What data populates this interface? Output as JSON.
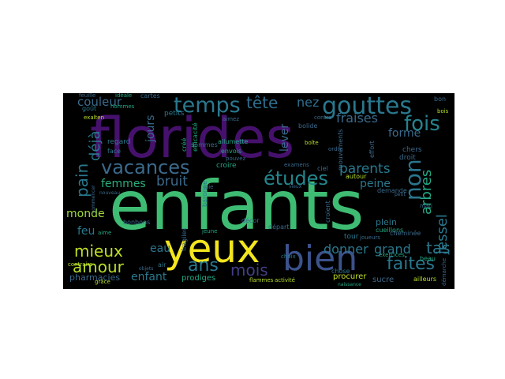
{
  "wordcloud": {
    "background": "#000000",
    "palette": [
      "#440154",
      "#3b528b",
      "#21918c",
      "#5ec962",
      "#fde725"
    ],
    "words": {
      "enfants": "enfants",
      "florides": "florides",
      "yeux": "yeux",
      "bien": "bien",
      "gouttes": "gouttes",
      "temps": "temps",
      "vacances": "vacances",
      "etudes": "études",
      "non": "non",
      "fois": "fois",
      "tete": "tête",
      "nez": "nez",
      "fraises": "fraises",
      "parents": "parents",
      "faites": "faites",
      "mois": "mois",
      "ans": "ans",
      "amour": "amour",
      "mieux": "mieux",
      "pain": "pain",
      "deja": "déjà",
      "couleur": "couleur",
      "femmes": "femmes",
      "bruit": "bruit",
      "jours": "jours",
      "donner": "donner",
      "grand": "grand",
      "tas": "tas",
      "arbres": "arbres",
      "jessel": "jessel",
      "peine": "peine",
      "forme": "forme",
      "monde": "monde",
      "feu": "feu",
      "eau": "eau",
      "enfant": "enfant",
      "pharmacies": "pharmacies",
      "prodiges": "prodiges",
      "lever": "lever",
      "plein": "plein",
      "procurer": "procurer",
      "sucre": "sucre",
      "regard": "regard",
      "petits": "petits",
      "sommes": "sommes",
      "allumette": "allumette",
      "envois": "envois",
      "croire": "croire",
      "cueillons": "cueillons",
      "tour": "tour",
      "chose": "chose",
      "autour": "autour",
      "demande": "demande",
      "bonbons": "bonbons",
      "air": "air",
      "face": "face",
      "exalten": "exalten",
      "hommes": "hommes",
      "feuille": "feuille",
      "ideale": "idéale",
      "cartes": "cartes",
      "gout": "goût",
      "bon": "bon",
      "bois": "bois",
      "chers": "chers",
      "droit": "droit",
      "beau": "beau",
      "ailleurs": "ailleurs",
      "flammes": "flammes",
      "activite": "activité",
      "grace": "grâce",
      "contraire": "contraire",
      "aime": "aime",
      "bolide": "bolide",
      "ciel": "ciel",
      "depart": "départ",
      "jeune": "jeune",
      "exercices": "exercices",
      "cheminee": "cheminée",
      "choix": "choix",
      "decor": "décor",
      "croient": "croient",
      "effort": "effort",
      "mouvements": "mouvements",
      "boite": "boîte",
      "contre": "contre",
      "examens": "examens",
      "baronne": "baronne",
      "joie": "joie",
      "fragiles": "fragiles",
      "efficacite": "efficacité",
      "cree": "créé",
      "aimez": "aimez",
      "ordre": "ordre",
      "mari": "mari",
      "joueurs": "joueurs",
      "demarche": "démarche",
      "naissance": "naissance",
      "pouvez": "pouvez",
      "vieux": "vieux",
      "petit": "petit",
      "objets": "objets",
      "nouveau": "nouveau",
      "commencer": "commencer"
    }
  }
}
